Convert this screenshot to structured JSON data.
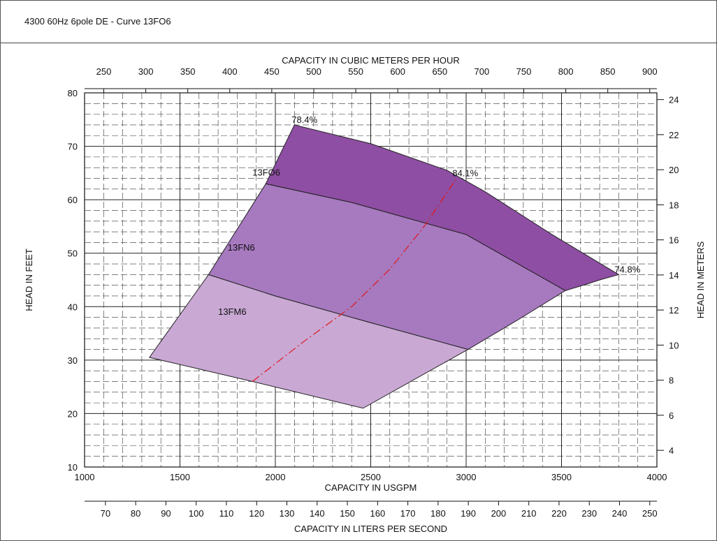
{
  "title": "4300 60Hz 6pole DE - Curve 13FO6",
  "colors": {
    "region_low": "#c9a8d4",
    "region_mid": "#a779bf",
    "region_high": "#8e4ea3",
    "bep_line": "#e01818",
    "grid": "#222222"
  },
  "chart_data": {
    "type": "area",
    "title": "",
    "xlabel": "CAPACITY IN USGPM",
    "ylabel": "HEAD IN FEET",
    "xlim": [
      1000,
      4000
    ],
    "ylim": [
      10,
      80
    ],
    "xticks": [
      1000,
      1500,
      2000,
      2500,
      3000,
      3500,
      4000
    ],
    "yticks": [
      10,
      20,
      30,
      40,
      50,
      60,
      70,
      80
    ],
    "grid": true,
    "top_axis": {
      "label": "CAPACITY IN CUBIC METERS PER HOUR",
      "ticks": [
        250,
        300,
        350,
        400,
        450,
        500,
        550,
        600,
        650,
        700,
        750,
        800,
        850,
        900
      ]
    },
    "right_axis": {
      "label": "HEAD IN METERS",
      "ticks": [
        4,
        6,
        8,
        10,
        12,
        14,
        16,
        18,
        20,
        22,
        24
      ]
    },
    "bottom_axis_2": {
      "label": "CAPACITY IN LITERS PER SECOND",
      "ticks": [
        70,
        80,
        90,
        100,
        110,
        120,
        130,
        140,
        150,
        160,
        170,
        180,
        190,
        200,
        210,
        220,
        230,
        240,
        250
      ]
    },
    "series": [
      {
        "name": "13FM6",
        "points": [
          [
            1340,
            30.5
          ],
          [
            1650,
            46
          ],
          [
            2000,
            42
          ],
          [
            2500,
            37
          ],
          [
            3010,
            32
          ],
          [
            2460,
            21
          ],
          [
            1880,
            26
          ]
        ]
      },
      {
        "name": "13FN6",
        "points": [
          [
            1650,
            46
          ],
          [
            1950,
            63
          ],
          [
            2400,
            59.5
          ],
          [
            3000,
            53.5
          ],
          [
            3520,
            43
          ],
          [
            3270,
            37.5
          ],
          [
            3010,
            32
          ],
          [
            2500,
            37
          ],
          [
            2000,
            42
          ]
        ]
      },
      {
        "name": "13FO6",
        "points": [
          [
            1950,
            63
          ],
          [
            2100,
            74
          ],
          [
            2500,
            70.5
          ],
          [
            2900,
            65.5
          ],
          [
            3100,
            61.5
          ],
          [
            3450,
            53.5
          ],
          [
            3800,
            46
          ],
          [
            3700,
            45
          ],
          [
            3640,
            44.3
          ],
          [
            3520,
            43
          ],
          [
            3000,
            53.5
          ],
          [
            2400,
            59.5
          ]
        ]
      }
    ],
    "bep_line": {
      "points": [
        [
          1880,
          26
        ],
        [
          2150,
          33.5
        ],
        [
          2400,
          40
        ],
        [
          2600,
          47
        ],
        [
          2780,
          55
        ],
        [
          2950,
          64
        ]
      ]
    },
    "annotations": [
      {
        "text": "78.4%",
        "x": 2100,
        "y": 74
      },
      {
        "text": "84.1%",
        "x": 2950,
        "y": 64
      },
      {
        "text": "74.8%",
        "x": 3800,
        "y": 46
      }
    ]
  }
}
